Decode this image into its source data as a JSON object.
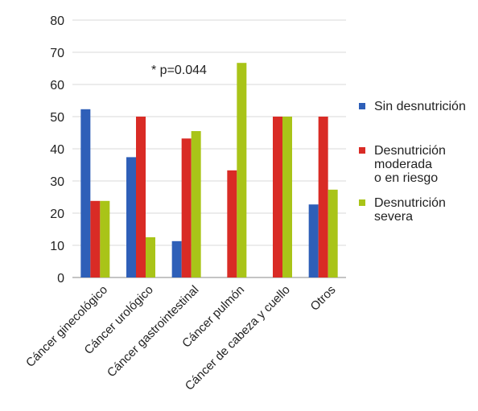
{
  "chart_data": {
    "type": "bar",
    "categories": [
      "Cáncer ginecológico",
      "Cáncer urológico",
      "Cáncer gastrointestinal",
      "Cáncer pulmón",
      "Cáncer de cabeza y cuello",
      "Otros"
    ],
    "series": [
      {
        "name": "Sin desnutrición",
        "color": "#2e5fb8",
        "values": [
          52.3,
          37.4,
          11.3,
          0,
          0,
          22.7
        ]
      },
      {
        "name": "Desnutrición moderada o en riesgo",
        "color": "#d92b25",
        "values": [
          23.8,
          50.0,
          43.2,
          33.3,
          50.0,
          50.0
        ]
      },
      {
        "name": "Desnutrición severa",
        "color": "#a9c418",
        "values": [
          23.8,
          12.5,
          45.5,
          66.7,
          50.0,
          27.3
        ]
      }
    ],
    "legend": {
      "placement": "right",
      "entries": [
        {
          "lines": [
            "Sin desnutrición"
          ]
        },
        {
          "lines": [
            "Desnutrición",
            "moderada",
            "o en riesgo"
          ]
        },
        {
          "lines": [
            "Desnutrición",
            "severa"
          ]
        }
      ]
    },
    "annotation": "* p=0.044",
    "title": "",
    "xlabel": "",
    "ylabel": "",
    "ylim": [
      0,
      80
    ],
    "yticks": [
      0,
      10,
      20,
      30,
      40,
      50,
      60,
      70,
      80
    ],
    "grid": true
  }
}
